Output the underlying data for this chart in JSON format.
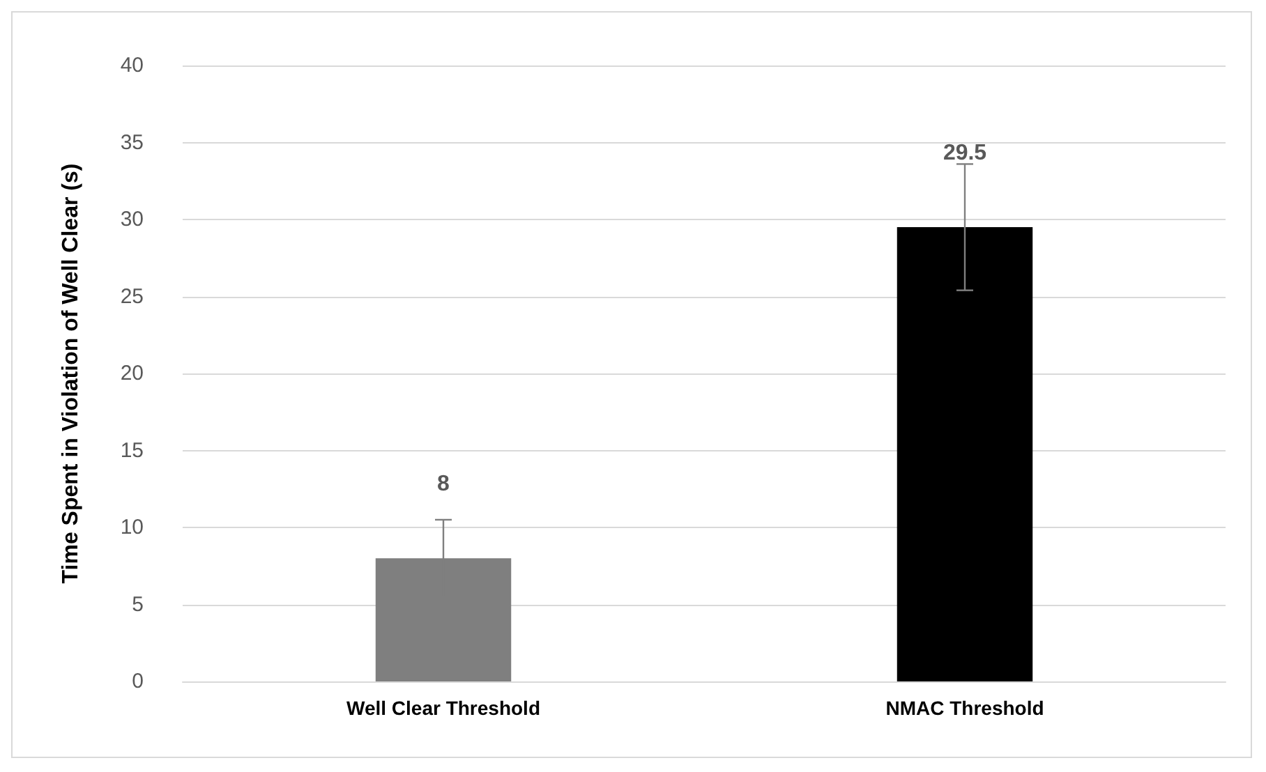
{
  "chart_data": {
    "type": "bar",
    "ylabel": "Time Spent in Violation of Well Clear (s)",
    "categories": [
      "Well Clear Threshold",
      "NMAC Threshold"
    ],
    "values": [
      8,
      29.5
    ],
    "colors": [
      "#7f7f7f",
      "#000000"
    ],
    "errors": [
      2.5,
      4.1
    ],
    "data_labels": true,
    "ylim": [
      0,
      40
    ],
    "yticks": [
      0,
      5,
      10,
      15,
      20,
      25,
      30,
      35,
      40
    ],
    "grid": "y"
  }
}
